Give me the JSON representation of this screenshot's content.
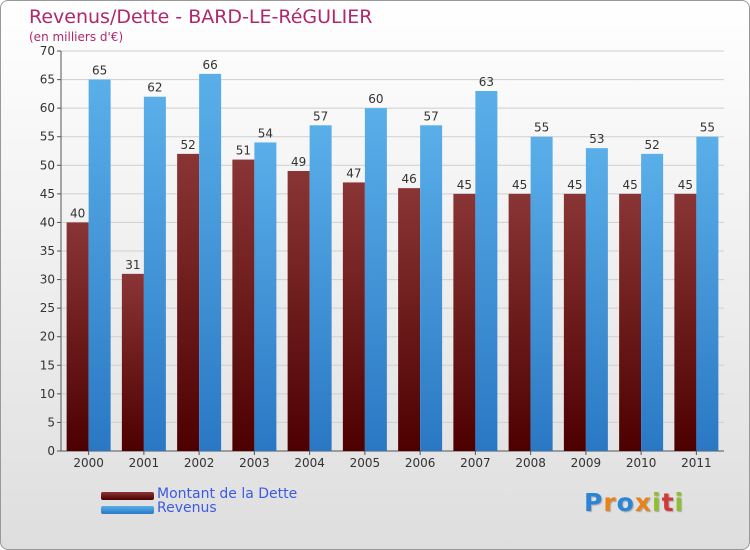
{
  "title": "Revenus/Dette - BARD-LE-RéGULIER",
  "subtitle": "(en milliers d'€)",
  "legend": [
    {
      "label": "Montant de la Dette",
      "color": "#6a1212"
    },
    {
      "label": "Revenus",
      "color": "#3f9ae8"
    }
  ],
  "logo": {
    "text": "Proxiti",
    "letters": [
      {
        "ch": "P",
        "color": "#2a85d6"
      },
      {
        "ch": "r",
        "color": "#e7831c"
      },
      {
        "ch": "o",
        "color": "#2a85d6"
      },
      {
        "ch": "x",
        "color": "#e7831c"
      },
      {
        "ch": "i",
        "color": "#8fbf2e"
      },
      {
        "ch": "t",
        "color": "#d23a3a"
      },
      {
        "ch": "i",
        "color": "#8fbf2e"
      }
    ]
  },
  "chart_data": {
    "type": "bar",
    "title": "Revenus/Dette - BARD-LE-RéGULIER",
    "ylabel": "(en milliers d'€)",
    "xlabel": "",
    "categories": [
      "2000",
      "2001",
      "2002",
      "2003",
      "2004",
      "2005",
      "2006",
      "2007",
      "2008",
      "2009",
      "2010",
      "2011"
    ],
    "series": [
      {
        "name": "Montant de la Dette",
        "values": [
          40,
          31,
          52,
          51,
          49,
          47,
          46,
          45,
          45,
          45,
          45,
          45
        ],
        "color_top": "#8a3535",
        "color_bottom": "#4d0000"
      },
      {
        "name": "Revenus",
        "values": [
          65,
          62,
          66,
          54,
          57,
          60,
          57,
          63,
          55,
          53,
          52,
          55
        ],
        "color_top": "#5aafe9",
        "color_bottom": "#2a78c4"
      }
    ],
    "ylim": [
      0,
      70
    ],
    "yticks": [
      0,
      5,
      10,
      15,
      20,
      25,
      30,
      35,
      40,
      45,
      50,
      55,
      60,
      65,
      70
    ],
    "grid": true,
    "legend_position": "bottom-left"
  }
}
